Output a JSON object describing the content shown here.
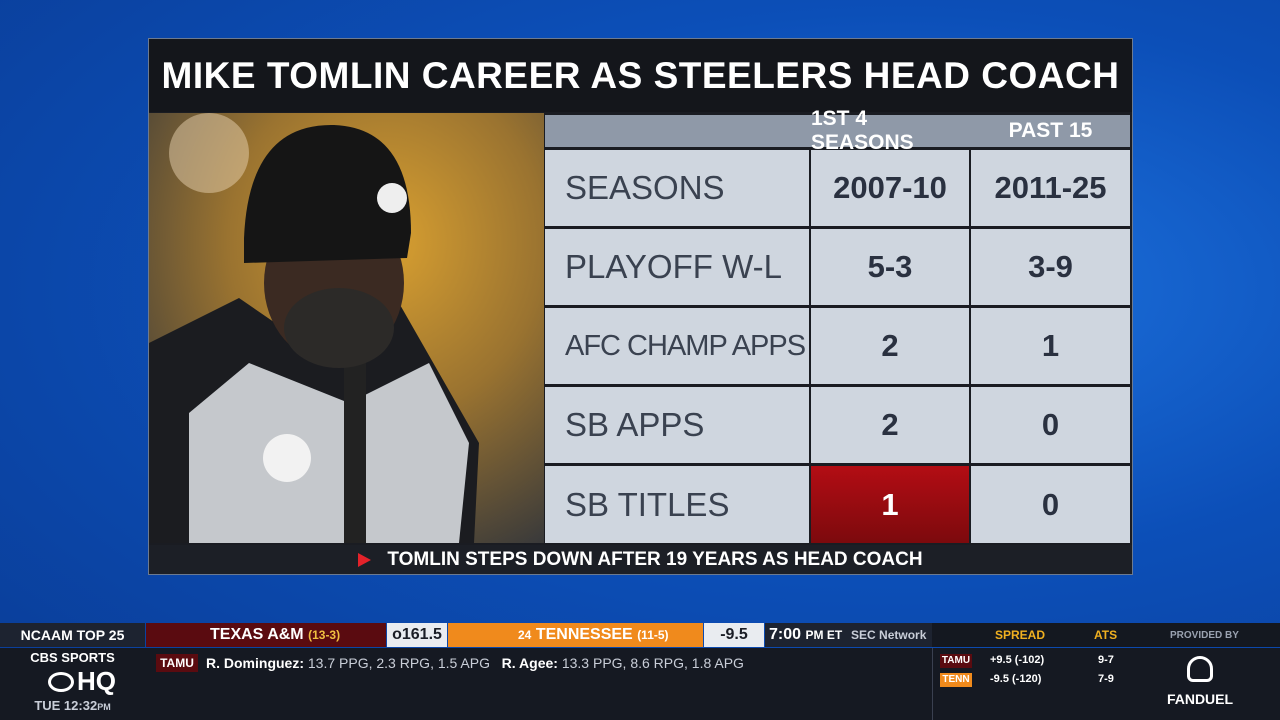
{
  "title": "MIKE TOMLIN CAREER AS STEELERS HEAD COACH",
  "table": {
    "columns": [
      "1ST 4 SEASONS",
      "PAST 15"
    ],
    "rows": [
      [
        "SEASONS",
        "2007-10",
        "2011-25"
      ],
      [
        "PLAYOFF W-L",
        "5-3",
        "3-9"
      ],
      [
        "AFC CHAMP APPS",
        "2",
        "1"
      ],
      [
        "SB APPS",
        "2",
        "0"
      ],
      [
        "SB TITLES",
        "1",
        "0"
      ]
    ]
  },
  "headline": "TOMLIN STEPS DOWN AFTER 19 YEARS AS HEAD COACH",
  "ticker": {
    "section": "NCAAM TOP 25",
    "away": {
      "name": "TEXAS A&M",
      "record": "(13-3)"
    },
    "total": "o161.5",
    "home": {
      "rank": "24",
      "name": "TENNESSEE",
      "record": "(11-5)"
    },
    "spread": "-9.5",
    "time": "7:00",
    "time_suffix": "PM ET",
    "network": "SEC Network",
    "team_tag": "TAMU",
    "players": [
      {
        "name": "R. Dominguez:",
        "stats": "13.7 PPG, 2.3 RPG, 1.5 APG"
      },
      {
        "name": "R. Agee:",
        "stats": "13.3 PPG, 8.6 RPG, 1.8 APG"
      }
    ],
    "odds": {
      "headers": [
        "SPREAD",
        "ATS"
      ],
      "rows": [
        [
          "TAMU",
          "+9.5 (-102)",
          "9-7"
        ],
        [
          "TENN",
          "-9.5 (-120)",
          "7-9"
        ]
      ]
    },
    "provided_by": "PROVIDED BY",
    "sponsor": "FANDUEL"
  },
  "logo": {
    "brand": "CBS SPORTS",
    "show": "HQ",
    "clock": "TUE 12:32",
    "clock_suffix": "PM"
  }
}
